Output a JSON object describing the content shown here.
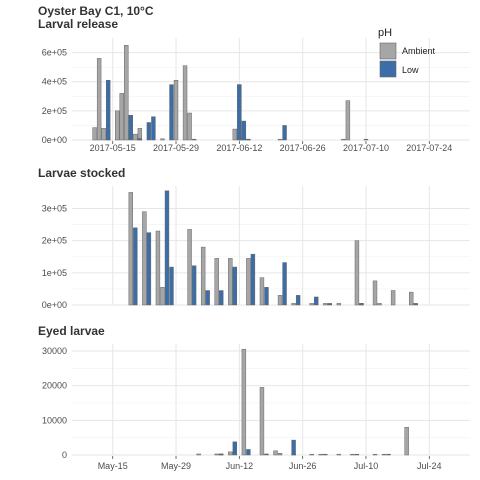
{
  "figure": {
    "title": "Oyster Bay C1, 10°C"
  },
  "legend": {
    "title": "pH",
    "placement": "top-right",
    "items": [
      {
        "label": "Ambient",
        "color": "#a6a6a6"
      },
      {
        "label": "Low",
        "color": "#3b6ea8"
      }
    ]
  },
  "colors": {
    "ambient": "#a6a6a6",
    "low": "#3b6ea8",
    "outline": "#666666"
  },
  "chart_data": [
    {
      "type": "bar",
      "title": "Larval release",
      "grid": true,
      "ylim": [
        0,
        700000
      ],
      "yticks": [
        0,
        200000,
        400000,
        600000
      ],
      "ytick_labels": [
        "0e+00",
        "2e+05",
        "4e+05",
        "6e+05"
      ],
      "xlim": [
        "2017-05-06",
        "2017-08-02"
      ],
      "xticks": [
        "2017-05-15",
        "2017-05-29",
        "2017-06-12",
        "2017-06-26",
        "2017-07-10",
        "2017-07-24"
      ],
      "xtick_labels": [
        "2017-05-15",
        "2017-05-29",
        "2017-06-12",
        "2017-06-26",
        "2017-07-10",
        "2017-07-24"
      ],
      "series": [
        {
          "name": "Ambient",
          "points": [
            [
              "2017-05-11",
              85000
            ],
            [
              "2017-05-12",
              560000
            ],
            [
              "2017-05-13",
              80000
            ],
            [
              "2017-05-14",
              70000
            ],
            [
              "2017-05-16",
              200000
            ],
            [
              "2017-05-17",
              320000
            ],
            [
              "2017-05-18",
              650000
            ],
            [
              "2017-05-20",
              40000
            ],
            [
              "2017-05-21",
              80000
            ],
            [
              "2017-05-26",
              8000
            ],
            [
              "2017-05-29",
              410000
            ],
            [
              "2017-05-31",
              510000
            ],
            [
              "2017-06-01",
              185000
            ],
            [
              "2017-06-11",
              75000
            ],
            [
              "2017-06-12",
              380000
            ],
            [
              "2017-06-13",
              20000
            ],
            [
              "2017-06-14",
              5000
            ],
            [
              "2017-06-21",
              5000
            ],
            [
              "2017-07-05",
              5000
            ],
            [
              "2017-07-06",
              270000
            ]
          ]
        },
        {
          "name": "Low",
          "points": [
            [
              "2017-05-14",
              410000
            ],
            [
              "2017-05-19",
              170000
            ],
            [
              "2017-05-21",
              10000
            ],
            [
              "2017-05-23",
              120000
            ],
            [
              "2017-05-24",
              160000
            ],
            [
              "2017-05-28",
              380000
            ],
            [
              "2017-06-02",
              5000
            ],
            [
              "2017-06-12",
              380000
            ],
            [
              "2017-06-13",
              130000
            ],
            [
              "2017-06-14",
              5000
            ],
            [
              "2017-06-22",
              100000
            ],
            [
              "2017-07-10",
              5000
            ]
          ]
        }
      ]
    },
    {
      "type": "bar",
      "title": "Larvae stocked",
      "grid": true,
      "ylim": [
        0,
        370000
      ],
      "yticks": [
        0,
        100000,
        200000,
        300000
      ],
      "ytick_labels": [
        "0e+00",
        "1e+05",
        "2e+05",
        "3e+05"
      ],
      "xlim": [
        "2017-05-06",
        "2017-08-02"
      ],
      "xticks": [],
      "xtick_labels": [],
      "series": [
        {
          "name": "Ambient",
          "points": [
            [
              "2017-05-19",
              350000
            ],
            [
              "2017-05-22",
              290000
            ],
            [
              "2017-05-25",
              230000
            ],
            [
              "2017-05-26",
              55000
            ],
            [
              "2017-06-01",
              235000
            ],
            [
              "2017-06-04",
              180000
            ],
            [
              "2017-06-07",
              145000
            ],
            [
              "2017-06-10",
              145000
            ],
            [
              "2017-06-14",
              145000
            ],
            [
              "2017-06-17",
              85000
            ],
            [
              "2017-06-21",
              30000
            ],
            [
              "2017-06-24",
              5000
            ],
            [
              "2017-06-28",
              5000
            ],
            [
              "2017-07-01",
              5000
            ],
            [
              "2017-07-04",
              5000
            ],
            [
              "2017-07-08",
              200000
            ],
            [
              "2017-07-09",
              5000
            ],
            [
              "2017-07-12",
              75000
            ],
            [
              "2017-07-13",
              5000
            ],
            [
              "2017-07-16",
              45000
            ],
            [
              "2017-07-20",
              40000
            ]
          ]
        },
        {
          "name": "Low",
          "points": [
            [
              "2017-05-20",
              240000
            ],
            [
              "2017-05-23",
              225000
            ],
            [
              "2017-05-27",
              355000
            ],
            [
              "2017-05-28",
              118000
            ],
            [
              "2017-06-02",
              122000
            ],
            [
              "2017-06-05",
              45000
            ],
            [
              "2017-06-08",
              45000
            ],
            [
              "2017-06-11",
              118000
            ],
            [
              "2017-06-15",
              158000
            ],
            [
              "2017-06-18",
              55000
            ],
            [
              "2017-06-22",
              132000
            ],
            [
              "2017-06-25",
              30000
            ],
            [
              "2017-06-29",
              25000
            ],
            [
              "2017-07-02",
              5000
            ],
            [
              "2017-07-09",
              5000
            ],
            [
              "2017-07-21",
              5000
            ]
          ]
        }
      ]
    },
    {
      "type": "bar",
      "title": "Eyed larvae",
      "grid": true,
      "ylim": [
        0,
        32000
      ],
      "yticks": [
        0,
        10000,
        20000,
        30000
      ],
      "ytick_labels": [
        "0",
        "10000",
        "20000",
        "30000"
      ],
      "xlim": [
        "2017-05-06",
        "2017-08-02"
      ],
      "xticks": [
        "2017-05-15",
        "2017-05-29",
        "2017-06-12",
        "2017-06-26",
        "2017-07-10",
        "2017-07-24"
      ],
      "xtick_labels": [
        "May-15",
        "May-29",
        "Jun-12",
        "Jun-26",
        "Jul-10",
        "Jul-24"
      ],
      "series": [
        {
          "name": "Ambient",
          "points": [
            [
              "2017-06-03",
              300
            ],
            [
              "2017-06-07",
              300
            ],
            [
              "2017-06-08",
              300
            ],
            [
              "2017-06-10",
              900
            ],
            [
              "2017-06-13",
              30500
            ],
            [
              "2017-06-17",
              19500
            ],
            [
              "2017-06-20",
              1200
            ],
            [
              "2017-06-21",
              500
            ],
            [
              "2017-06-24",
              400
            ],
            [
              "2017-06-28",
              200
            ],
            [
              "2017-06-30",
              200
            ],
            [
              "2017-07-04",
              200
            ],
            [
              "2017-07-07",
              200
            ],
            [
              "2017-07-12",
              200
            ],
            [
              "2017-07-14",
              200
            ],
            [
              "2017-07-19",
              8000
            ]
          ]
        },
        {
          "name": "Low",
          "points": [
            [
              "2017-06-08",
              300
            ],
            [
              "2017-06-11",
              3800
            ],
            [
              "2017-06-14",
              1600
            ],
            [
              "2017-06-18",
              300
            ],
            [
              "2017-06-24",
              4300
            ],
            [
              "2017-07-01",
              200
            ],
            [
              "2017-07-08",
              200
            ],
            [
              "2017-07-15",
              200
            ]
          ]
        }
      ]
    }
  ]
}
